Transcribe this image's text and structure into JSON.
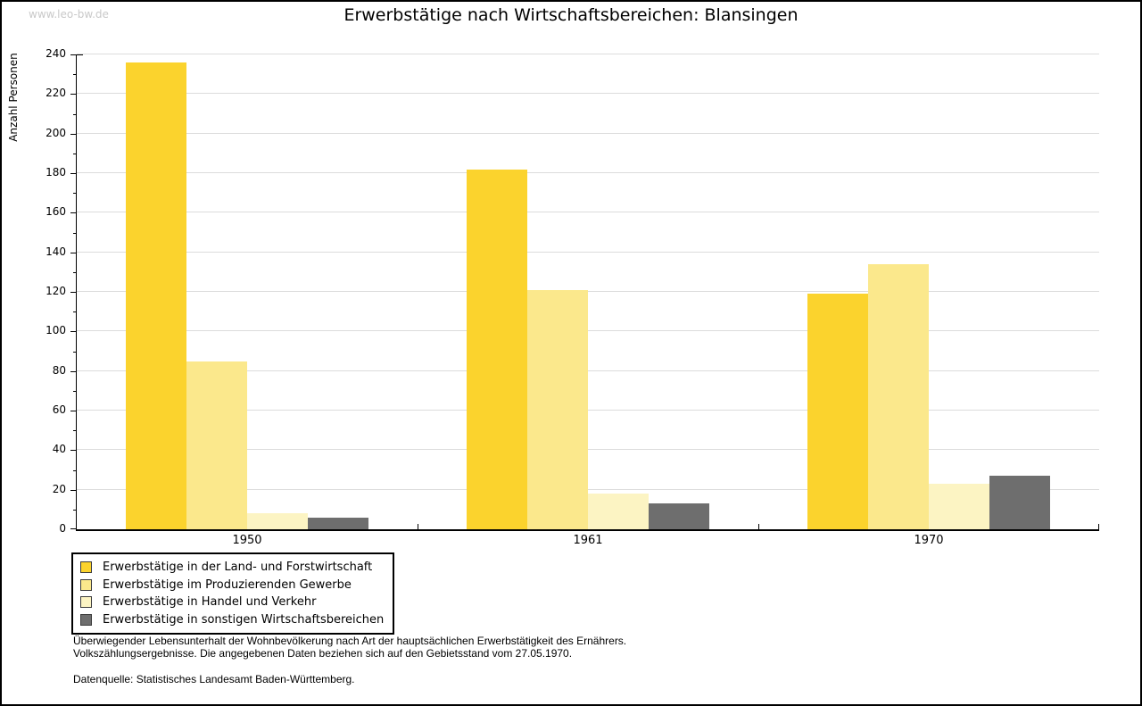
{
  "watermark": "www.leo-bw.de",
  "chart_data": {
    "type": "bar",
    "title": "Erwerbstätige nach Wirtschaftsbereichen: Blansingen",
    "ylabel": "Anzahl Personen",
    "xlabel": "",
    "categories": [
      "1950",
      "1961",
      "1970"
    ],
    "series": [
      {
        "name": "Erwerbstätige in der Land- und Forstwirtschaft",
        "color": "#FBD32D",
        "values": [
          236,
          182,
          119
        ]
      },
      {
        "name": "Erwerbstätige im Produzierenden Gewerbe",
        "color": "#FBE88C",
        "values": [
          85,
          121,
          134
        ]
      },
      {
        "name": "Erwerbstätige in Handel und Verkehr",
        "color": "#FCF4C3",
        "values": [
          8,
          18,
          23
        ]
      },
      {
        "name": "Erwerbstätige in sonstigen Wirtschaftsbereichen",
        "color": "#6E6E6E",
        "values": [
          6,
          13,
          27
        ]
      }
    ],
    "ylim": [
      0,
      240
    ],
    "ytick_step": 20,
    "yticks": [
      0,
      20,
      40,
      60,
      80,
      100,
      120,
      140,
      160,
      180,
      200,
      220,
      240
    ],
    "grid": "horizontal-major",
    "legend_position": "bottom-left"
  },
  "footnotes": {
    "line1": "Überwiegender Lebensunterhalt der Wohnbevölkerung nach Art der hauptsächlichen Erwerbstätigkeit des Ernährers.",
    "line2": "Volkszählungsergebnisse. Die angegebenen Daten beziehen sich auf den Gebietsstand vom 27.05.1970.",
    "source": "Datenquelle: Statistisches Landesamt Baden-Württemberg."
  },
  "colors": {
    "gridline": "#dcdcdc",
    "axis": "#000000",
    "watermark": "#c9c9c9"
  }
}
